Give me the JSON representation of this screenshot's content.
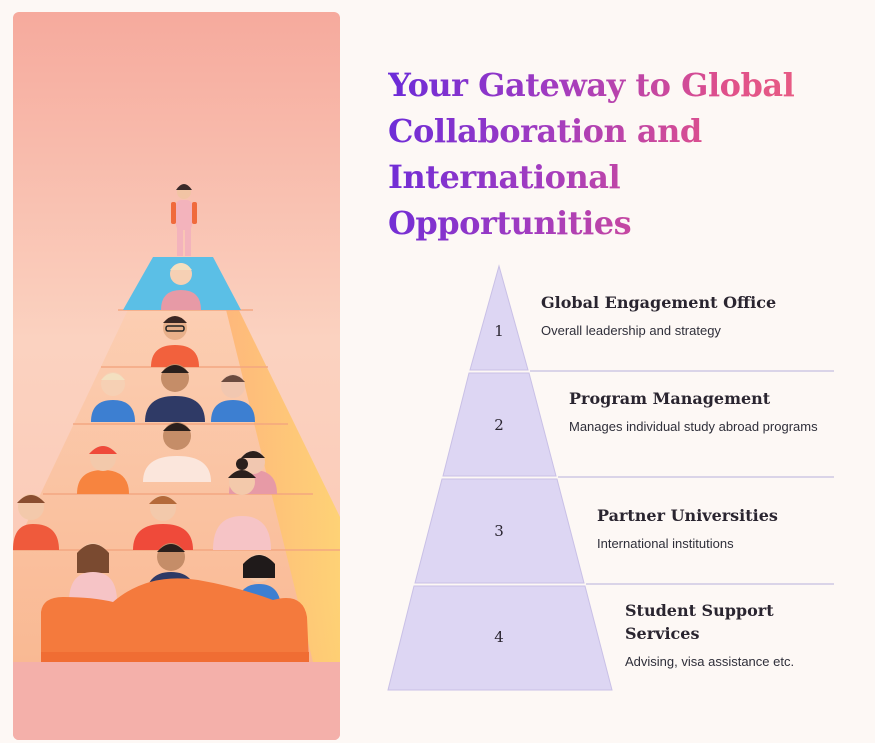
{
  "title": "Your Gateway to Global Collaboration and International Opportunities",
  "illustration": {
    "alt": "people-pyramid-illustration"
  },
  "levels": [
    {
      "number": "1",
      "title": "Global Engagement Office",
      "description": "Overall leadership and strategy"
    },
    {
      "number": "2",
      "title": "Program Management",
      "description": "Manages individual study abroad programs"
    },
    {
      "number": "3",
      "title": "Partner Universities",
      "description": "International institutions"
    },
    {
      "number": "4",
      "title": "Student Support Services",
      "description": "Advising, visa assistance etc."
    }
  ],
  "colors": {
    "pyramid_fill": "#ddd6f3",
    "pyramid_stroke": "#c9c0e6",
    "divider": "#cfc8e4",
    "title_gradient_start": "#6a2bd9",
    "title_gradient_end": "#f06a7e"
  }
}
